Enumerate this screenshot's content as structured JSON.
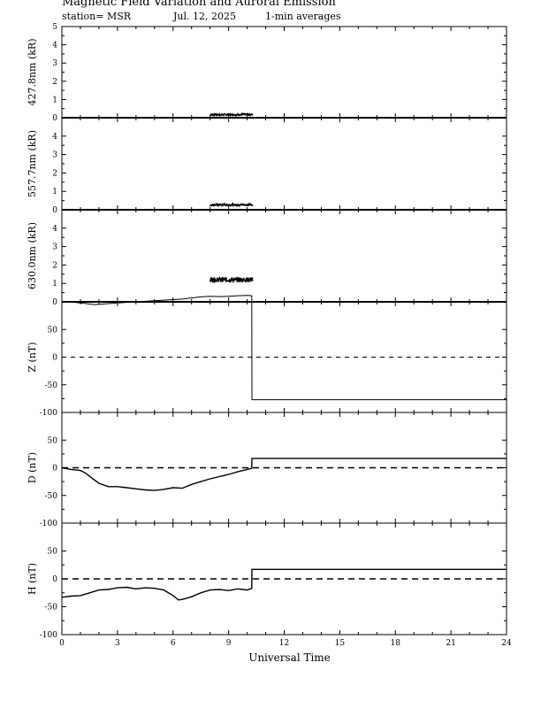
{
  "header": {
    "title": "Magnetic Field Variation and Auroral Emission",
    "station": "station= MSR",
    "date": "Jul. 12, 2025",
    "averaging": "1-min averages"
  },
  "chart_data": {
    "type": "line",
    "xlabel": "Universal Time",
    "xlim": [
      0,
      24
    ],
    "xticks": [
      0,
      3,
      6,
      9,
      12,
      15,
      18,
      21,
      24
    ],
    "panels": [
      {
        "id": "427",
        "ylabel": "427.8nm (kR)",
        "ylim": [
          0,
          5
        ],
        "yticks": [
          0,
          1,
          2,
          3,
          4,
          5
        ],
        "series": [
          {
            "style": "noisy",
            "x_start": 8.0,
            "x_end": 10.3,
            "level": 0.17,
            "amplitude": 0.07
          }
        ]
      },
      {
        "id": "557",
        "ylabel": "557.7nm (kR)",
        "ylim": [
          0,
          5
        ],
        "yticks": [
          0,
          1,
          2,
          3,
          4
        ],
        "series": [
          {
            "style": "noisy",
            "x_start": 8.0,
            "x_end": 10.3,
            "level": 0.27,
            "amplitude": 0.07
          }
        ]
      },
      {
        "id": "630",
        "ylabel": "630.0nm (kR)",
        "ylim": [
          0,
          5
        ],
        "yticks": [
          0,
          1,
          2,
          3,
          4
        ],
        "series": [
          {
            "style": "noisy",
            "x_start": 8.0,
            "x_end": 10.3,
            "level": 1.2,
            "amplitude": 0.14
          }
        ]
      },
      {
        "id": "Z",
        "ylabel": "Z (nT)",
        "ylim": [
          -100,
          100
        ],
        "yticks": [
          -100,
          -50,
          0,
          50
        ],
        "zero_line": "dashed-thin",
        "series": [
          {
            "style": "line",
            "x": [
              0,
              0.5,
              1.0,
              1.5,
              1.8,
              2.2,
              2.6,
              3.0,
              3.5,
              4.0,
              4.5,
              5.0,
              5.5,
              6.0,
              6.5,
              7.0,
              7.5,
              8.0,
              8.5,
              9.0,
              9.5,
              10.0,
              10.25,
              10.26,
              24
            ],
            "y": [
              100,
              99.5,
              98,
              96,
              95,
              96,
              97,
              98,
              99,
              100,
              101,
              102,
              103,
              104,
              105,
              107,
              109,
              110,
              109.5,
              110,
              111,
              111.5,
              111,
              -77,
              -77
            ]
          }
        ]
      },
      {
        "id": "D",
        "ylabel": "D (nT)",
        "ylim": [
          -100,
          100
        ],
        "yticks": [
          -100,
          -50,
          0,
          50
        ],
        "zero_line": "dashed-thick",
        "series": [
          {
            "style": "line",
            "x": [
              0,
              0.5,
              1.0,
              1.3,
              1.6,
              2.0,
              2.5,
              3.0,
              3.5,
              4.0,
              4.5,
              5.0,
              5.5,
              6.0,
              6.5,
              7.0,
              7.5,
              8.0,
              8.5,
              9.0,
              9.5,
              10.0,
              10.25,
              10.26,
              24
            ],
            "y": [
              0,
              -3,
              -5,
              -10,
              -18,
              -28,
              -34,
              -34,
              -36,
              -38,
              -40,
              -41,
              -39,
              -36,
              -37,
              -30,
              -25,
              -20,
              -16,
              -12,
              -7,
              -3,
              -1,
              17,
              17
            ]
          }
        ]
      },
      {
        "id": "H",
        "ylabel": "H (nT)",
        "ylim": [
          -100,
          100
        ],
        "yticks": [
          -100,
          -50,
          0,
          50
        ],
        "zero_line": "dashed-thick",
        "series": [
          {
            "style": "line",
            "x": [
              0,
              0.5,
              1.0,
              1.5,
              2.0,
              2.5,
              3.0,
              3.5,
              4.0,
              4.5,
              5.0,
              5.5,
              6.0,
              6.3,
              6.6,
              7.0,
              7.5,
              8.0,
              8.5,
              9.0,
              9.5,
              10.0,
              10.25,
              10.26,
              24
            ],
            "y": [
              -33,
              -31,
              -30,
              -25,
              -20,
              -19,
              -16,
              -15,
              -18,
              -16,
              -17,
              -20,
              -30,
              -38,
              -36,
              -32,
              -25,
              -20,
              -19,
              -21,
              -18,
              -20,
              -17,
              17,
              17
            ]
          }
        ]
      }
    ]
  }
}
